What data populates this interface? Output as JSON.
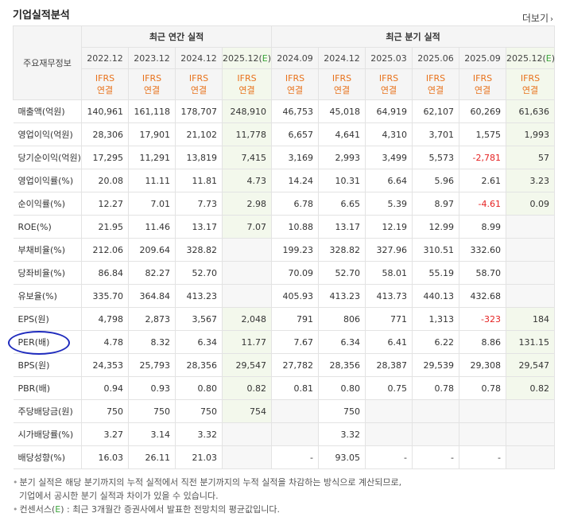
{
  "title": "기업실적분석",
  "more_label": "더보기",
  "corner_label": "주요재무정보",
  "groups": {
    "annual": "최근 연간 실적",
    "quarterly": "최근 분기 실적"
  },
  "periods": [
    "2022.12",
    "2023.12",
    "2024.12",
    "2025.12(E)",
    "2024.09",
    "2024.12",
    "2025.03",
    "2025.06",
    "2025.09",
    "2025.12(E)"
  ],
  "ifrs_top": "IFRS",
  "ifrs_bottom": "연결",
  "rows": [
    {
      "label": "매출액(억원)",
      "values": [
        "140,961",
        "161,118",
        "178,707",
        "248,910",
        "46,753",
        "45,018",
        "64,919",
        "62,107",
        "60,269",
        "61,636"
      ]
    },
    {
      "label": "영업이익(억원)",
      "values": [
        "28,306",
        "17,901",
        "21,102",
        "11,778",
        "6,657",
        "4,641",
        "4,310",
        "3,701",
        "1,575",
        "1,993"
      ]
    },
    {
      "label": "당기순이익(억원)",
      "values": [
        "17,295",
        "11,291",
        "13,819",
        "7,415",
        "3,169",
        "2,993",
        "3,499",
        "5,573",
        "-2,781",
        "57"
      ]
    },
    {
      "label": "영업이익률(%)",
      "values": [
        "20.08",
        "11.11",
        "11.81",
        "4.73",
        "14.24",
        "10.31",
        "6.64",
        "5.96",
        "2.61",
        "3.23"
      ]
    },
    {
      "label": "순이익률(%)",
      "values": [
        "12.27",
        "7.01",
        "7.73",
        "2.98",
        "6.78",
        "6.65",
        "5.39",
        "8.97",
        "-4.61",
        "0.09"
      ]
    },
    {
      "label": "ROE(%)",
      "values": [
        "21.95",
        "11.46",
        "13.17",
        "7.07",
        "10.88",
        "13.17",
        "12.19",
        "12.99",
        "8.99",
        ""
      ]
    },
    {
      "label": "부채비율(%)",
      "values": [
        "212.06",
        "209.64",
        "328.82",
        "",
        "199.23",
        "328.82",
        "327.96",
        "310.51",
        "332.60",
        ""
      ]
    },
    {
      "label": "당좌비율(%)",
      "values": [
        "86.84",
        "82.27",
        "52.70",
        "",
        "70.09",
        "52.70",
        "58.01",
        "55.19",
        "58.70",
        ""
      ]
    },
    {
      "label": "유보율(%)",
      "values": [
        "335.70",
        "364.84",
        "413.23",
        "",
        "405.93",
        "413.23",
        "413.73",
        "440.13",
        "432.68",
        ""
      ]
    },
    {
      "label": "EPS(원)",
      "values": [
        "4,798",
        "2,873",
        "3,567",
        "2,048",
        "791",
        "806",
        "771",
        "1,313",
        "-323",
        "184"
      ]
    },
    {
      "label": "PER(배)",
      "values": [
        "4.78",
        "8.32",
        "6.34",
        "11.77",
        "7.67",
        "6.34",
        "6.41",
        "6.22",
        "8.86",
        "131.15"
      ]
    },
    {
      "label": "BPS(원)",
      "values": [
        "24,353",
        "25,793",
        "28,356",
        "29,547",
        "27,782",
        "28,356",
        "28,387",
        "29,539",
        "29,308",
        "29,547"
      ]
    },
    {
      "label": "PBR(배)",
      "values": [
        "0.94",
        "0.93",
        "0.80",
        "0.82",
        "0.81",
        "0.80",
        "0.75",
        "0.78",
        "0.78",
        "0.82"
      ]
    },
    {
      "label": "주당배당금(원)",
      "values": [
        "750",
        "750",
        "750",
        "754",
        "",
        "750",
        "",
        "",
        "",
        ""
      ]
    },
    {
      "label": "시가배당률(%)",
      "values": [
        "3.27",
        "3.14",
        "3.32",
        "",
        "",
        "3.32",
        "",
        "",
        "",
        ""
      ]
    },
    {
      "label": "배당성향(%)",
      "values": [
        "16.03",
        "26.11",
        "21.03",
        "",
        "-",
        "93.05",
        "-",
        "-",
        "-",
        ""
      ]
    }
  ],
  "notes": {
    "line1": "분기 실적은 해당 분기까지의 누적 실적에서 직전 분기까지의 누적 실적을 차감하는 방식으로 계산되므로,",
    "line2": "기업에서 공시한 분기 실적과 차이가 있을 수 있습니다.",
    "line3_prefix": "컨센서스(",
    "line3_e": "E",
    "line3_suffix": ") : 최근 3개월간 증권사에서 발표한 전망치의 평균값입니다."
  },
  "colors": {
    "ifrs": "#e8721c",
    "estimate_bg": "#f3f8ec",
    "negative": "#e52222",
    "highlight_circle": "#1f2bbd"
  }
}
